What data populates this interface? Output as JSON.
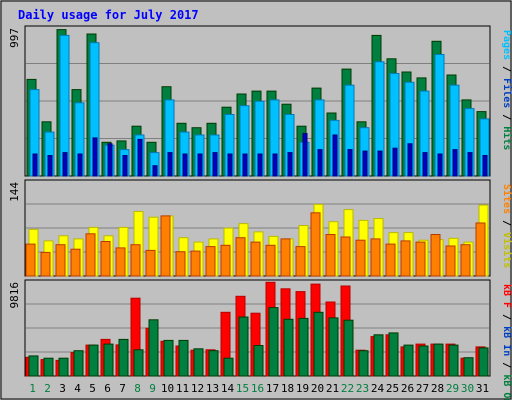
{
  "chart_data": {
    "type": "bar",
    "title": "Daily usage for July 2017",
    "categories": [
      "1",
      "2",
      "3",
      "4",
      "5",
      "6",
      "7",
      "8",
      "9",
      "10",
      "11",
      "12",
      "13",
      "14",
      "15",
      "16",
      "17",
      "18",
      "19",
      "20",
      "21",
      "22",
      "23",
      "24",
      "25",
      "26",
      "27",
      "28",
      "29",
      "30",
      "31"
    ],
    "weekend_days": [
      "1",
      "2",
      "8",
      "9",
      "15",
      "16",
      "22",
      "23",
      "29",
      "30"
    ],
    "panels": [
      {
        "id": "hits-files-pages",
        "max_label": "997",
        "ylim": [
          0,
          997
        ],
        "series": [
          {
            "name": "Hits",
            "color": "#008040",
            "values": [
              660,
              370,
              1000,
              590,
              970,
              230,
              240,
              340,
              230,
              610,
              360,
              330,
              360,
              470,
              560,
              580,
              580,
              490,
              340,
              600,
              430,
              730,
              370,
              960,
              800,
              710,
              670,
              920,
              690,
              520,
              440
            ]
          },
          {
            "name": "Files",
            "color": "#00c0ff",
            "values": [
              590,
              300,
              960,
              500,
              910,
              210,
              180,
              280,
              160,
              520,
              300,
              280,
              280,
              420,
              480,
              510,
              520,
              420,
              230,
              520,
              380,
              620,
              330,
              780,
              700,
              640,
              580,
              830,
              620,
              460,
              390
            ]
          },
          {
            "name": "Pages",
            "color": "#0000c0",
            "values": [
              150,
              140,
              160,
              150,
              260,
              220,
              140,
              250,
              70,
              160,
              150,
              150,
              160,
              150,
              150,
              150,
              150,
              160,
              290,
              180,
              280,
              180,
              170,
              170,
              190,
              220,
              160,
              150,
              180,
              160,
              140
            ]
          }
        ],
        "side_labels": [
          {
            "text": "Pages",
            "color": "#00c0ff"
          },
          {
            "text": " / ",
            "color": "#000000"
          },
          {
            "text": "Files",
            "color": "#0040c0"
          },
          {
            "text": " / ",
            "color": "#000000"
          },
          {
            "text": "Hits",
            "color": "#008040"
          }
        ]
      },
      {
        "id": "visits-sites",
        "max_label": "144",
        "ylim": [
          0,
          144
        ],
        "series": [
          {
            "name": "Visits",
            "color": "#ffff00",
            "values": [
              73,
              55,
              63,
              58,
              76,
              63,
              76,
              101,
              92,
              94,
              60,
              53,
              58,
              75,
              82,
              69,
              62,
              58,
              79,
              112,
              85,
              104,
              87,
              90,
              68,
              68,
              56,
              57,
              59,
              53,
              111
            ]
          },
          {
            "name": "Sites",
            "color": "#ff8000",
            "values": [
              50,
              37,
              49,
              42,
              66,
              54,
              44,
              49,
              40,
              94,
              38,
              39,
              46,
              48,
              60,
              53,
              48,
              58,
              46,
              99,
              65,
              61,
              56,
              58,
              50,
              55,
              53,
              65,
              47,
              49,
              83
            ]
          }
        ],
        "side_labels": [
          {
            "text": "Sites",
            "color": "#ff8000"
          },
          {
            "text": " / ",
            "color": "#000000"
          },
          {
            "text": "Visits",
            "color": "#c0c000"
          }
        ]
      },
      {
        "id": "kb",
        "max_label": "9816",
        "ylim": [
          0,
          9816
        ],
        "series": [
          {
            "name": "kB F",
            "color": "#ff0000",
            "values": [
              2000,
              1750,
              1660,
              2500,
              3300,
              3900,
              3320,
              8300,
              5100,
              3700,
              3200,
              2750,
              2800,
              6800,
              8500,
              6700,
              10000,
              9300,
              9000,
              9800,
              7900,
              9600,
              2750,
              4200,
              4400,
              3100,
              3400,
              3400,
              3400,
              1900,
              3100
            ]
          },
          {
            "name": "kB Out",
            "color": "#008040",
            "values": [
              2140,
              1900,
              1900,
              2700,
              3300,
              3400,
              3900,
              2800,
              6000,
              3800,
              3800,
              2900,
              2700,
              1900,
              6300,
              3250,
              7300,
              6050,
              6150,
              6800,
              6200,
              5950,
              2700,
              4400,
              4600,
              3300,
              3200,
              3400,
              3300,
              1950,
              3000
            ]
          },
          {
            "name": "kB In",
            "color": "#0000c0",
            "values": [
              0,
              0,
              0,
              0,
              0,
              0,
              0,
              0,
              0,
              0,
              0,
              0,
              0,
              0,
              0,
              0,
              0,
              0,
              0,
              0,
              0,
              0,
              0,
              0,
              0,
              0,
              0,
              0,
              0,
              0,
              0
            ]
          }
        ],
        "side_labels": [
          {
            "text": "kB F",
            "color": "#ff0000"
          },
          {
            "text": " / ",
            "color": "#000000"
          },
          {
            "text": "kB In",
            "color": "#0040c0"
          },
          {
            "text": " / ",
            "color": "#000000"
          },
          {
            "text": "kB Out",
            "color": "#008040"
          }
        ]
      }
    ]
  },
  "colors": {
    "background": "#c0c0c0",
    "plot_background": "#c0c0c0",
    "title": "#0000ff",
    "weekday_label": "#000000",
    "weekend_label": "#008040",
    "gridline": "#808080"
  }
}
